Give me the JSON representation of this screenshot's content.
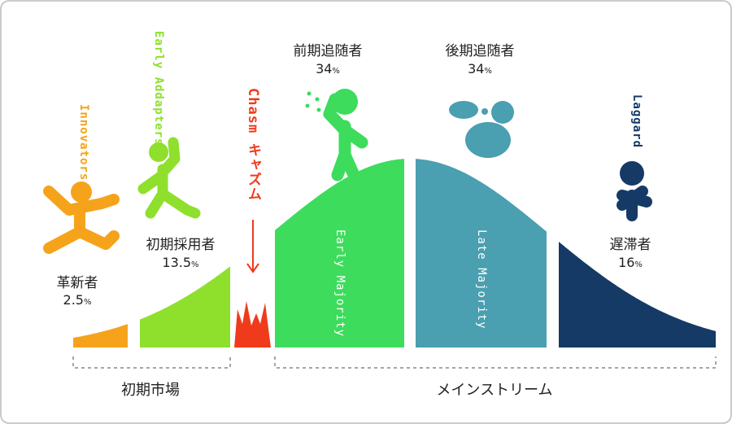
{
  "segments": [
    {
      "name": "Innovators",
      "label": "革新者",
      "value": 2.5,
      "unit": "%"
    },
    {
      "name": "Early Addapters",
      "label": "初期採用者",
      "value": 13.5,
      "unit": "%"
    },
    {
      "name": "Early Majority",
      "label": "前期追随者",
      "value": 34,
      "unit": "%"
    },
    {
      "name": "Late Majority",
      "label": "後期追随者",
      "value": 34,
      "unit": "%"
    },
    {
      "name": "Laggard",
      "label": "遅滞者",
      "value": 16,
      "unit": "%"
    }
  ],
  "chasm": "Chasm キャズム",
  "markets": [
    "初期市場",
    "メインストリーム"
  ]
}
